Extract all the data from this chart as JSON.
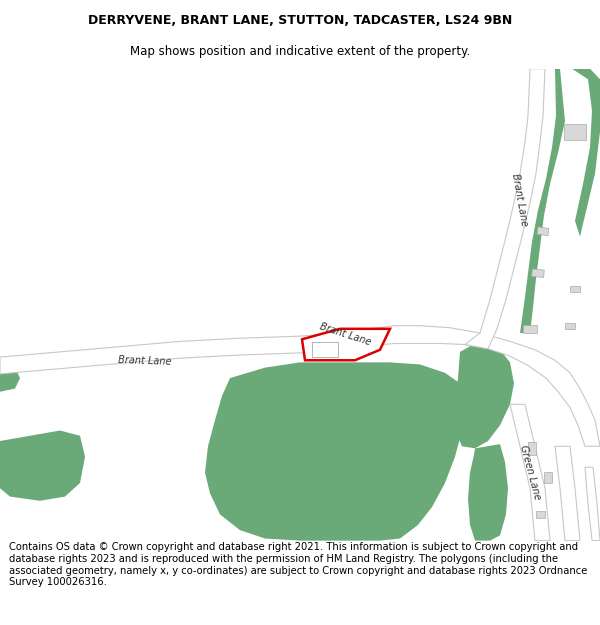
{
  "title": "DERRYVENE, BRANT LANE, STUTTON, TADCASTER, LS24 9BN",
  "subtitle": "Map shows position and indicative extent of the property.",
  "footer": "Contains OS data © Crown copyright and database right 2021. This information is subject to Crown copyright and database rights 2023 and is reproduced with the permission of HM Land Registry. The polygons (including the associated geometry, namely x, y co-ordinates) are subject to Crown copyright and database rights 2023 Ordnance Survey 100026316.",
  "bg_color": "#ffffff",
  "map_bg": "#ffffff",
  "road_color": "#ffffff",
  "road_edge_color": "#c8c8c8",
  "green_color": "#6aaa78",
  "red_outline_color": "#dd0000",
  "title_fontsize": 9,
  "subtitle_fontsize": 8.5,
  "footer_fontsize": 7.2,
  "road_lw": 1.0,
  "label_color": "#333333",
  "label_fontsize": 6.5,
  "building_color": "#d8d8d8",
  "building_edge": "#aaaaaa"
}
